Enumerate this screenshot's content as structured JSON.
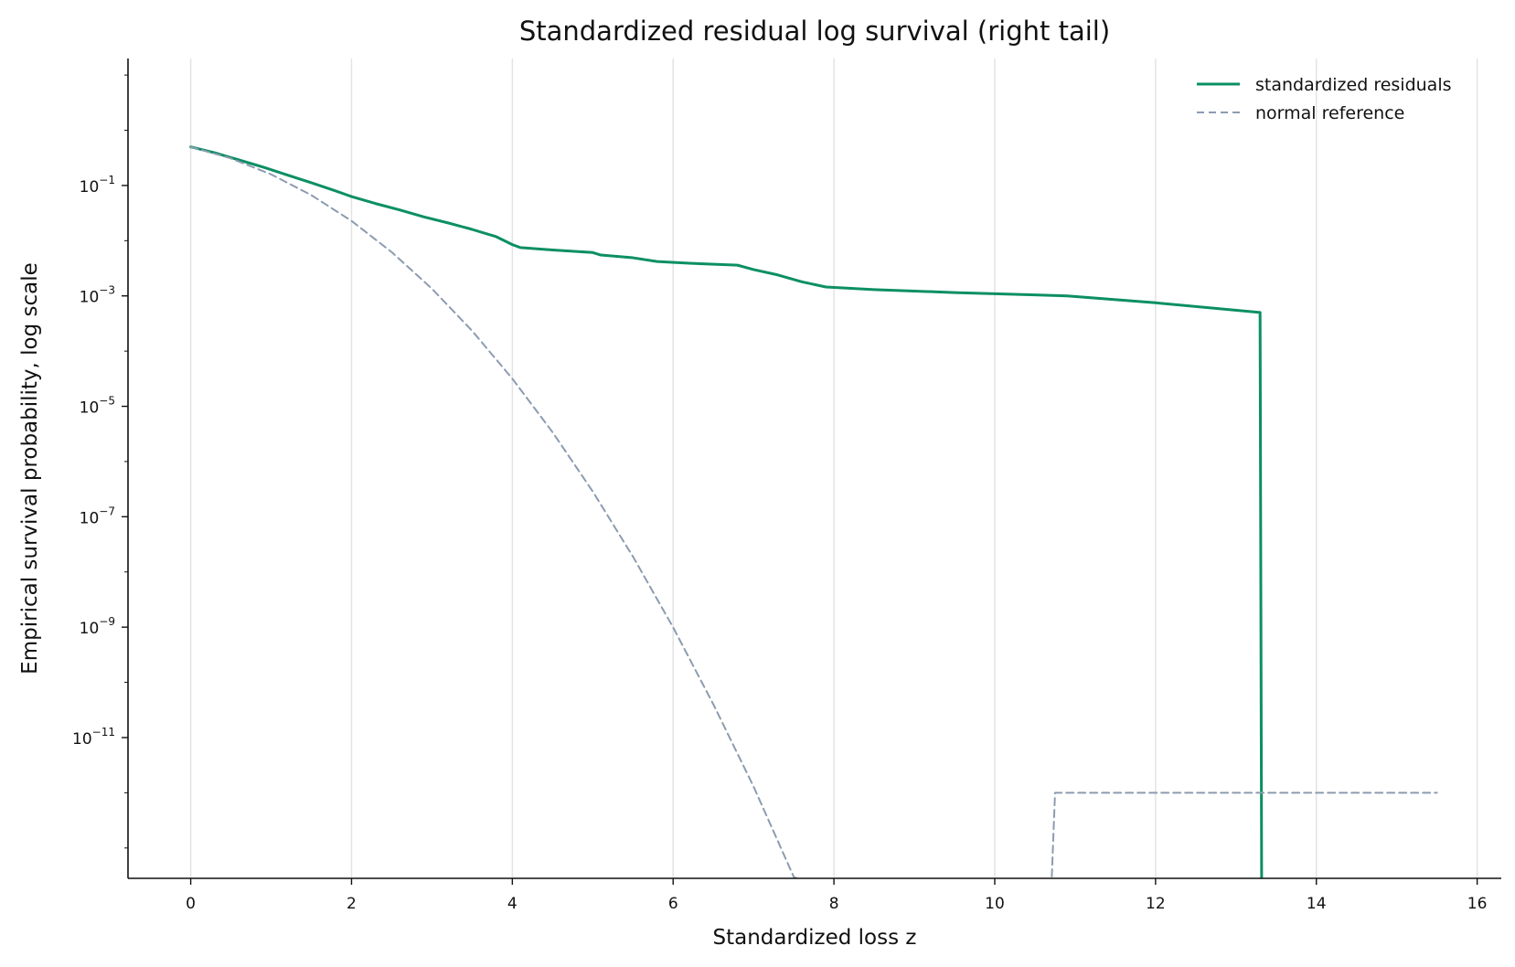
{
  "chart_data": {
    "type": "line",
    "title": "Standardized residual log survival (right tail)",
    "xlabel": "Standardized loss z",
    "ylabel": "Empirical survival probability, log scale",
    "xlim": [
      -0.78,
      16.3
    ],
    "ylim_log10": [
      -13.55,
      1.3
    ],
    "y_scale": "log",
    "grid": "vertical only",
    "legend_position": "upper right",
    "x_ticks": [
      {
        "value": 0,
        "label": "0"
      },
      {
        "value": 2,
        "label": "2"
      },
      {
        "value": 4,
        "label": "4"
      },
      {
        "value": 6,
        "label": "6"
      },
      {
        "value": 8,
        "label": "8"
      },
      {
        "value": 10,
        "label": "10"
      },
      {
        "value": 12,
        "label": "12"
      },
      {
        "value": 14,
        "label": "14"
      },
      {
        "value": 16,
        "label": "16"
      }
    ],
    "y_ticks": [
      {
        "exp": -1,
        "base": "10",
        "sup": "−1"
      },
      {
        "exp": -3,
        "base": "10",
        "sup": "−3"
      },
      {
        "exp": -5,
        "base": "10",
        "sup": "−5"
      },
      {
        "exp": -7,
        "base": "10",
        "sup": "−7"
      },
      {
        "exp": -9,
        "base": "10",
        "sup": "−9"
      },
      {
        "exp": -11,
        "base": "10",
        "sup": "−11"
      }
    ],
    "series": [
      {
        "name": "standardized residuals",
        "color": "#0b8f63",
        "style": "solid",
        "width": 3,
        "points": [
          [
            0.0,
            0.5
          ],
          [
            0.3,
            0.39
          ],
          [
            0.6,
            0.29
          ],
          [
            0.9,
            0.215
          ],
          [
            1.2,
            0.155
          ],
          [
            1.5,
            0.112
          ],
          [
            1.8,
            0.08
          ],
          [
            2.0,
            0.063
          ],
          [
            2.3,
            0.047
          ],
          [
            2.6,
            0.036
          ],
          [
            2.9,
            0.027
          ],
          [
            3.2,
            0.021
          ],
          [
            3.5,
            0.016
          ],
          [
            3.8,
            0.0118
          ],
          [
            4.0,
            0.0085
          ],
          [
            4.1,
            0.0075
          ],
          [
            4.5,
            0.0068
          ],
          [
            5.0,
            0.0061
          ],
          [
            5.1,
            0.0055
          ],
          [
            5.5,
            0.0049
          ],
          [
            5.8,
            0.0042
          ],
          [
            6.2,
            0.0039
          ],
          [
            6.8,
            0.0036
          ],
          [
            7.0,
            0.003
          ],
          [
            7.3,
            0.0024
          ],
          [
            7.6,
            0.0018
          ],
          [
            7.9,
            0.00145
          ],
          [
            8.5,
            0.0013
          ],
          [
            9.5,
            0.00115
          ],
          [
            10.9,
            0.001
          ],
          [
            12.0,
            0.00075
          ],
          [
            13.3,
            0.0005
          ],
          [
            13.32,
            1e-17
          ]
        ]
      },
      {
        "name": "normal reference",
        "color": "#8c9cb0",
        "style": "dashed",
        "width": 2,
        "points": [
          [
            0.0,
            0.5
          ],
          [
            0.5,
            0.309
          ],
          [
            1.0,
            0.159
          ],
          [
            1.5,
            0.0668
          ],
          [
            2.0,
            0.0228
          ],
          [
            2.5,
            0.0062
          ],
          [
            3.0,
            0.00135
          ],
          [
            3.5,
            0.000233
          ],
          [
            4.0,
            3.17e-05
          ],
          [
            4.5,
            3.4e-06
          ],
          [
            5.0,
            2.87e-07
          ],
          [
            5.5,
            1.9e-08
          ],
          [
            6.0,
            9.9e-10
          ],
          [
            6.5,
            4e-11
          ],
          [
            7.0,
            1.3e-12
          ],
          [
            7.5,
            3e-14
          ],
          [
            8.0,
            6e-16
          ],
          [
            8.5,
            9e-18
          ],
          [
            9.0,
            1e-19
          ],
          [
            9.5,
            1e-21
          ],
          [
            10.0,
            1e-23
          ],
          [
            10.7,
            1e-24
          ],
          [
            10.75,
            1e-12
          ],
          [
            15.5,
            1e-12
          ]
        ]
      }
    ]
  }
}
